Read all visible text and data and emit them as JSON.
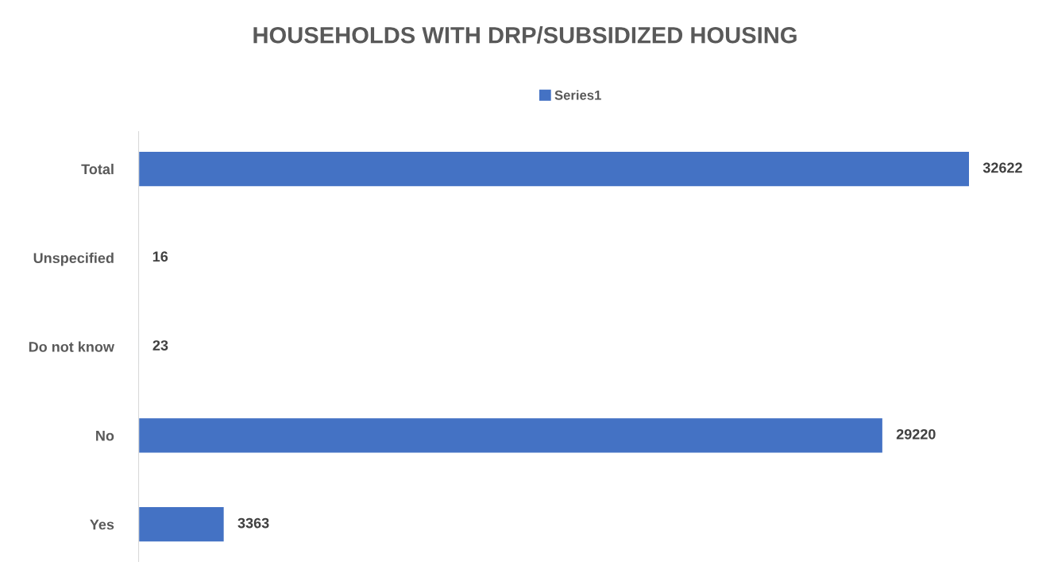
{
  "chart_data": {
    "type": "bar",
    "orientation": "horizontal",
    "title": "HOUSEHOLDS WITH DRP/SUBSIDIZED HOUSING",
    "categories": [
      "Total",
      "Unspecified",
      "Do not know",
      "No",
      "Yes"
    ],
    "series": [
      {
        "name": "Series1",
        "color": "#4472c4",
        "values": [
          32622,
          16,
          23,
          29220,
          3363
        ]
      }
    ],
    "data_labels": true,
    "legend": "top",
    "grid": false,
    "tick_labels": "y"
  }
}
